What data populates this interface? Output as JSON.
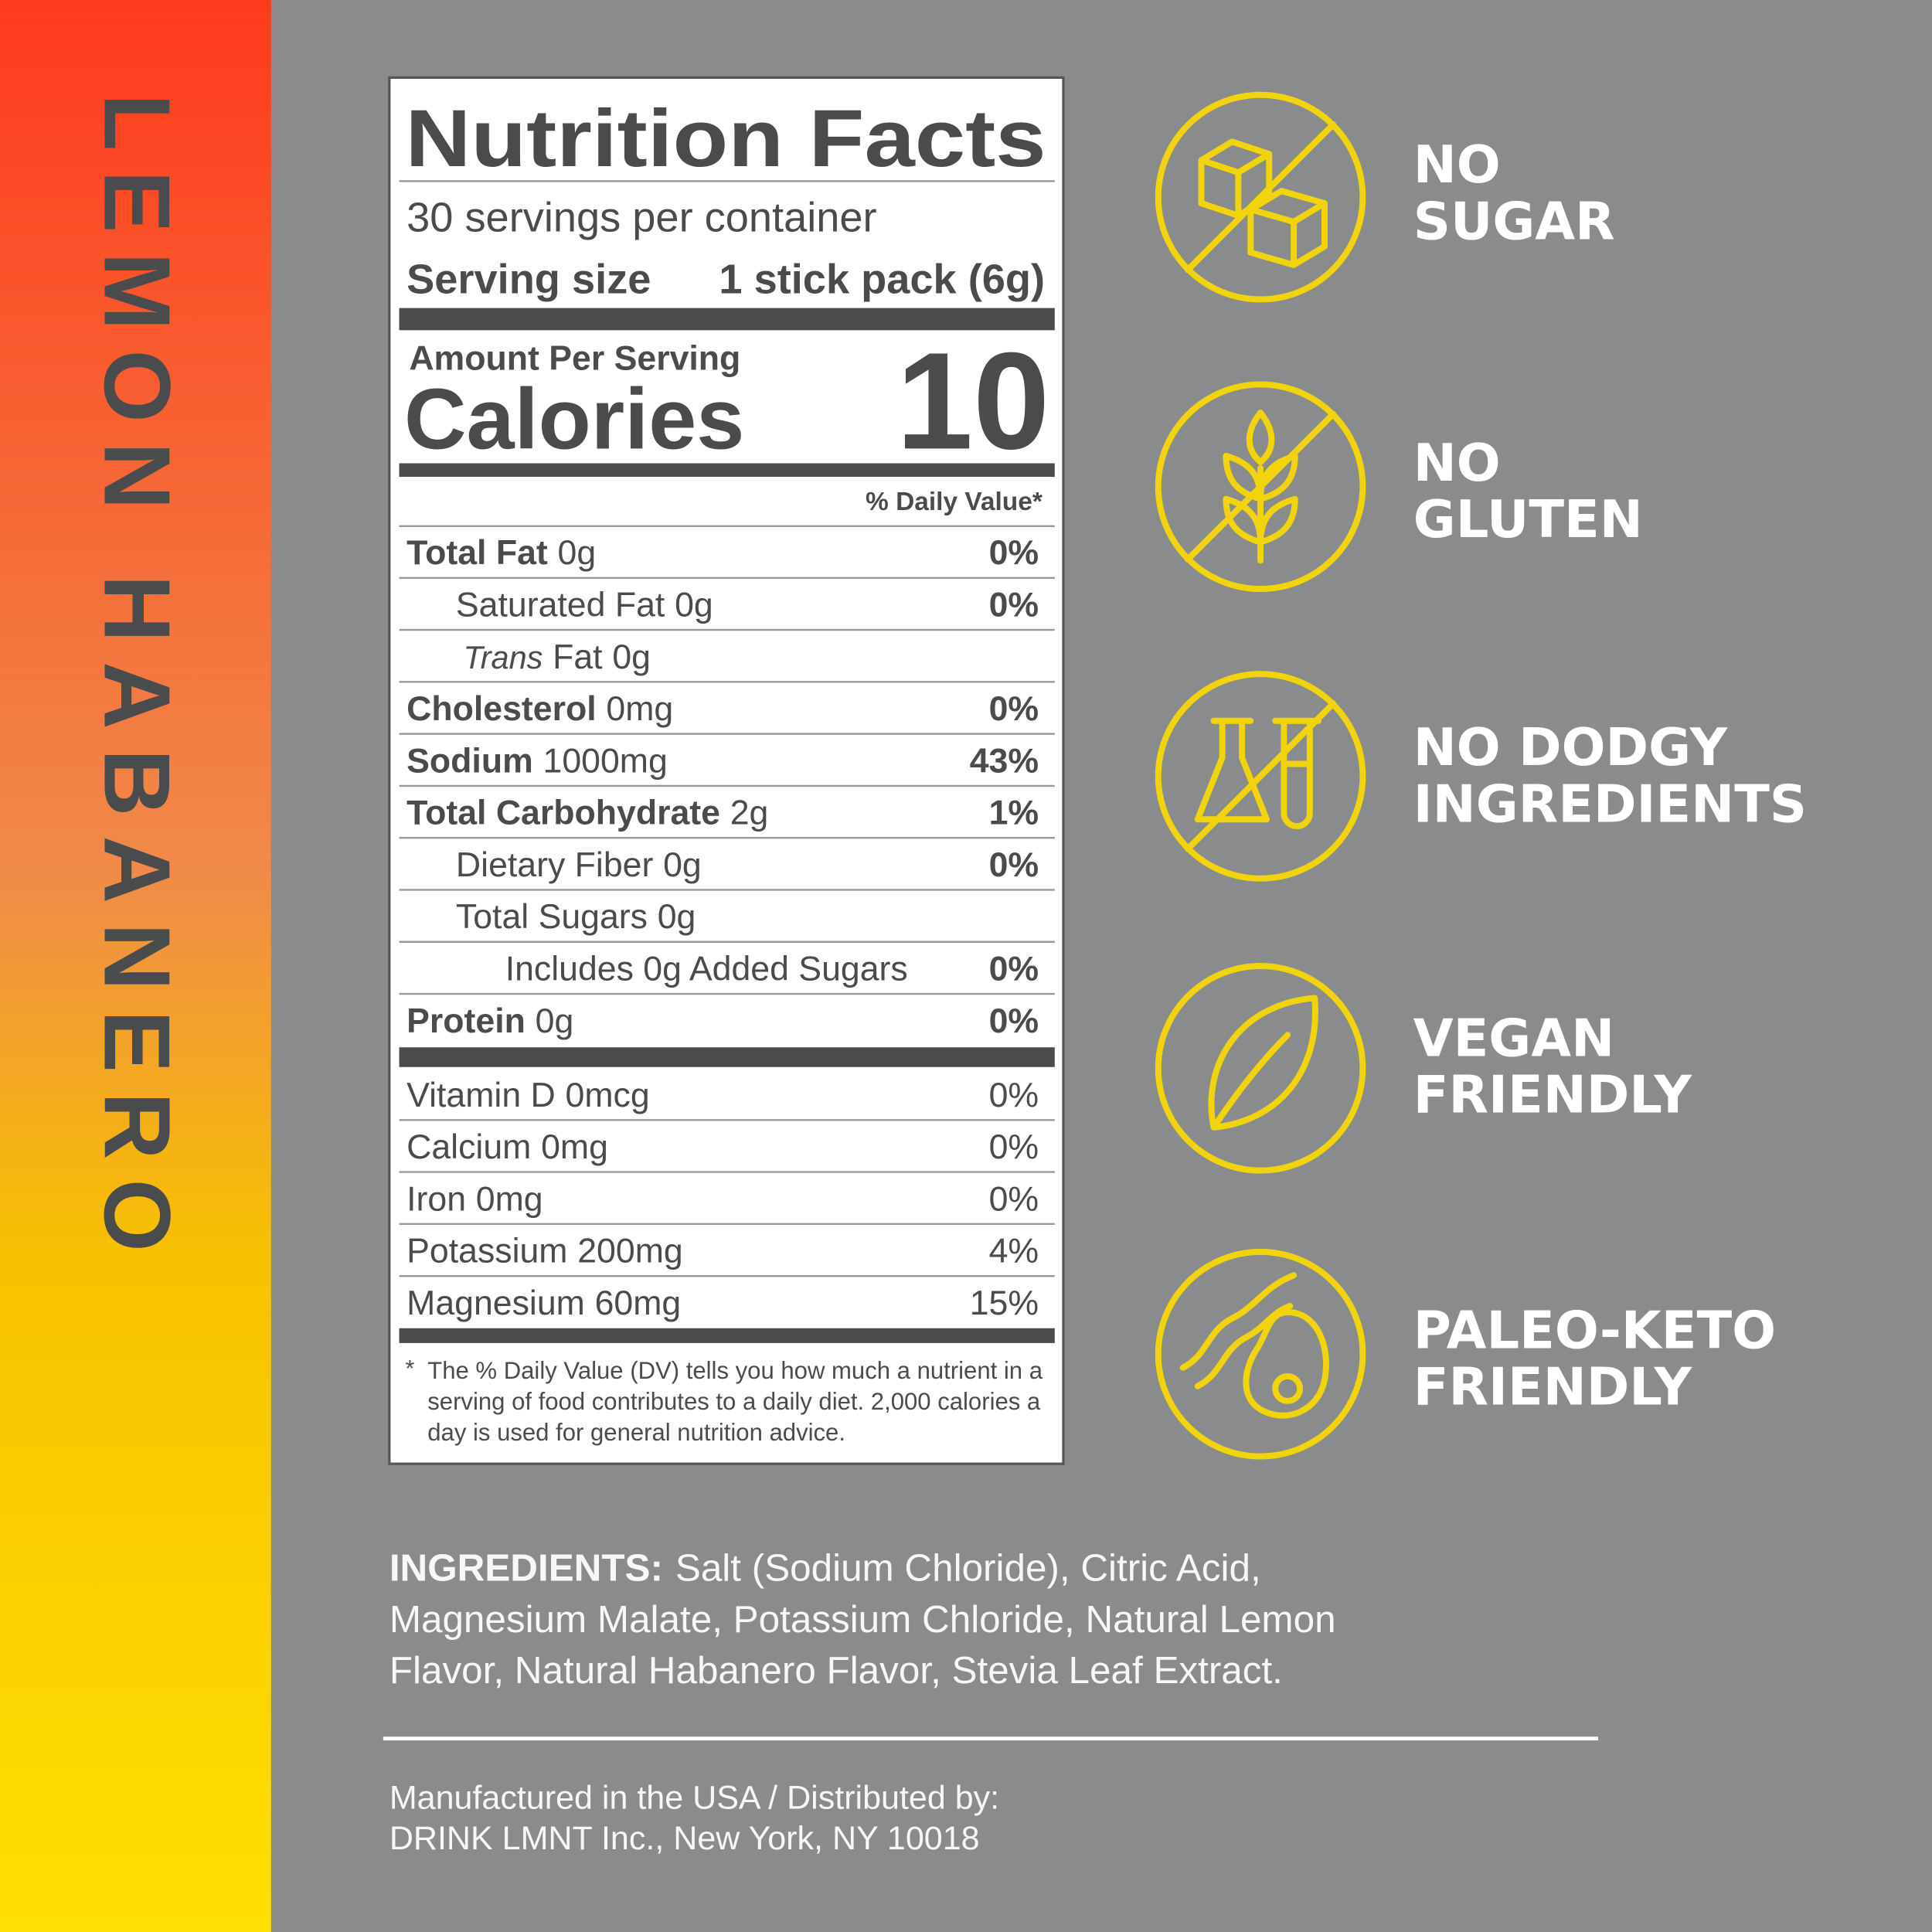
{
  "brand_side": "LEMON HABANERO",
  "nutrition_facts": {
    "title": "Nutrition Facts",
    "servings": "30 servings per container",
    "serving_size_label": "Serving size",
    "serving_size_value": "1 stick pack (6g)",
    "amount_per_serving": "Amount Per Serving",
    "calories_label": "Calories",
    "calories": 10,
    "daily_value_header": "% Daily Value*",
    "nutrients": [
      {
        "name": "Total Fat",
        "amount": "0g",
        "dv": "0%"
      },
      {
        "name": "Saturated Fat",
        "amount": "0g",
        "dv": "0%"
      },
      {
        "name": "Trans",
        "name_suffix": "Fat",
        "amount": "0g"
      },
      {
        "name": "Cholesterol",
        "amount": "0mg",
        "dv": "0%"
      },
      {
        "name": "Sodium",
        "amount": "1000mg",
        "dv": "43%"
      },
      {
        "name": "Total Carbohydrate",
        "amount": "2g",
        "dv": "1%"
      },
      {
        "name": "Dietary Fiber",
        "amount": "0g",
        "dv": "0%"
      },
      {
        "name": "Total Sugars",
        "amount": "0g"
      },
      {
        "name": "Includes 0g Added Sugars",
        "dv": "0%"
      },
      {
        "name": "Protein",
        "amount": "0g",
        "dv": "0%"
      }
    ],
    "vitamins": [
      {
        "name": "Vitamin D",
        "amount": "0mcg",
        "dv": "0%"
      },
      {
        "name": "Calcium",
        "amount": "0mg",
        "dv": "0%"
      },
      {
        "name": "Iron",
        "amount": "0mg",
        "dv": "0%"
      },
      {
        "name": "Potassium",
        "amount": "200mg",
        "dv": "4%"
      },
      {
        "name": "Magnesium",
        "amount": "60mg",
        "dv": "15%"
      }
    ],
    "footnote_mark": "*",
    "footnote_lines": [
      "The % Daily Value (DV) tells you how much a nutrient in a",
      "serving of food contributes to a daily diet. 2,000 calories a",
      "day is used for general nutrition advice."
    ]
  },
  "claims": [
    {
      "lines": [
        "NO",
        "SUGAR"
      ]
    },
    {
      "lines": [
        "NO",
        "GLUTEN"
      ]
    },
    {
      "lines": [
        "NO DODGY",
        "INGREDIENTS"
      ]
    },
    {
      "lines": [
        "VEGAN",
        "FRIENDLY"
      ]
    },
    {
      "lines": [
        "PALEO-KETO",
        "FRIENDLY"
      ]
    }
  ],
  "ingredients": {
    "label": "INGREDIENTS:",
    "lines": [
      "Salt (Sodium Chloride), Citric Acid,",
      "Magnesium Malate, Potassium Chloride, Natural Lemon",
      "Flavor, Natural Habanero Flavor, Stevia Leaf Extract."
    ]
  },
  "manufacturer": [
    "Manufactured in the USA / Distributed by:",
    "DRINK LMNT Inc., New York, NY 10018"
  ]
}
